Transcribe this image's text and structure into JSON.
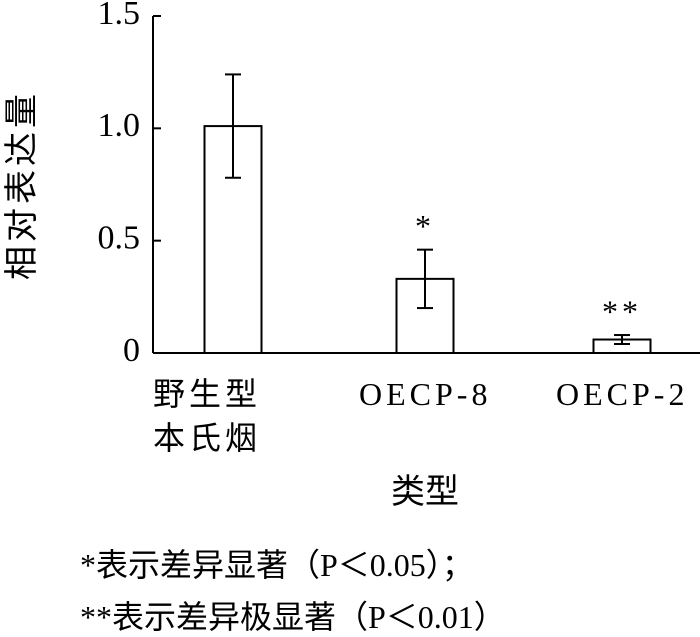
{
  "chart_data": {
    "type": "bar",
    "categories": [
      "野生型\n本氏烟",
      "OECP-8",
      "OECP-2"
    ],
    "values": [
      1.01,
      0.33,
      0.06
    ],
    "errors": [
      0.23,
      0.13,
      0.02
    ],
    "significance": [
      null,
      "*",
      "**"
    ],
    "ylabel": "相对表达量",
    "xlabel": "类型",
    "ylim": [
      0,
      1.5
    ],
    "yticks": [
      0,
      0.5,
      {
        "value": 1,
        "label": "1.0"
      },
      1.5
    ],
    "color": "#ffffff",
    "notes": [
      "*表示差异显著（P＜0.05）；",
      "**表示差异极显著（P＜0.01）"
    ]
  }
}
